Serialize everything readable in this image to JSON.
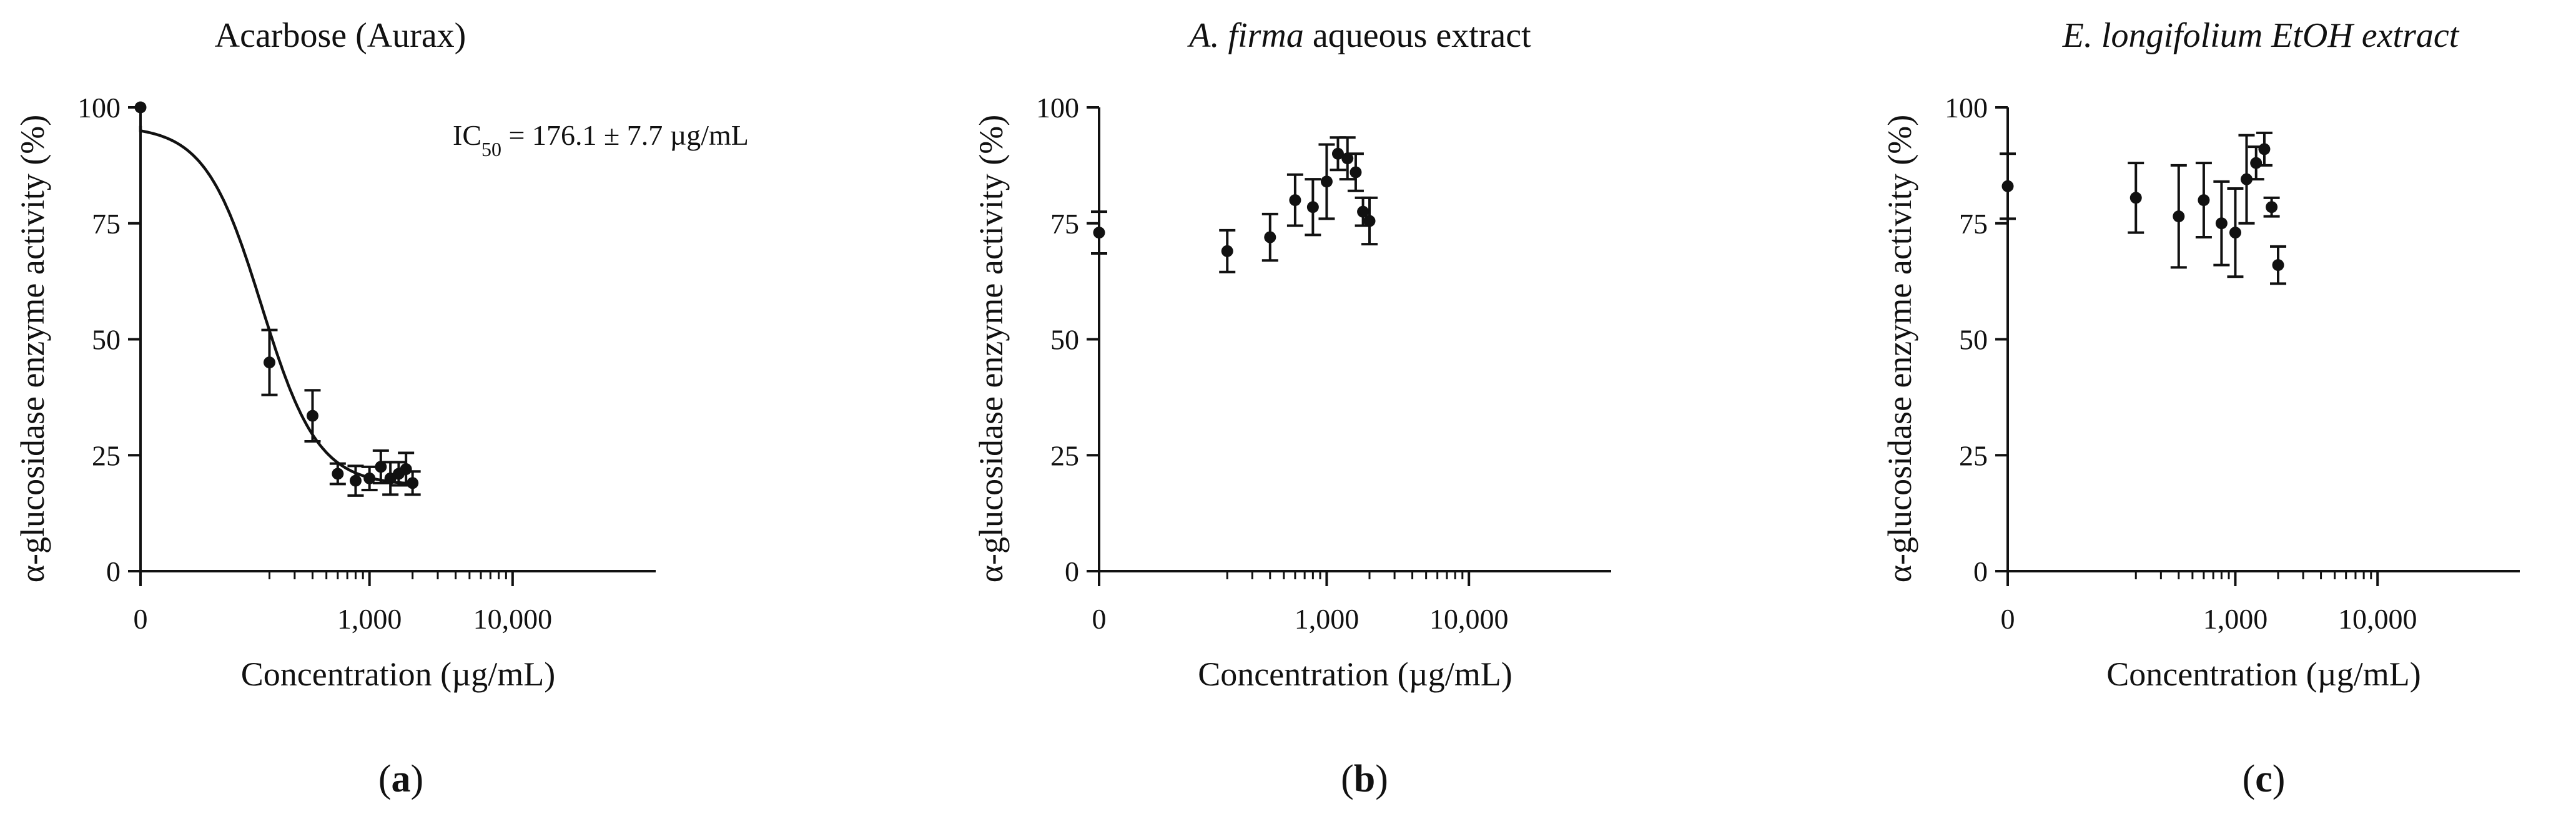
{
  "chart_data": [
    {
      "type": "scatter",
      "panel_label": "a",
      "title": "Acarbose (Aurax)",
      "title_parts": [
        {
          "text": "Acarbose (Aurax)",
          "italic": false
        }
      ],
      "xlabel": "Concentration (µg/mL)",
      "ylabel": "α-glucosidase enzyme activity (%)",
      "xscale": "log-with-zero",
      "x_ticks": [
        "0",
        "1,000",
        "10,000"
      ],
      "y_ticks": [
        "0",
        "25",
        "50",
        "75",
        "100"
      ],
      "ylim": [
        0,
        100
      ],
      "annotation_parts": [
        {
          "text": "IC",
          "style": "normal"
        },
        {
          "text": "50",
          "style": "sub"
        },
        {
          "text": " = 176.1 ± 7.7 µg/mL",
          "style": "normal"
        }
      ],
      "fit_curve": {
        "top": 96,
        "bottom": 18.5,
        "ic50": 176.1,
        "hill": 2.2
      },
      "points": [
        {
          "x": 0,
          "y": 100,
          "err": 0
        },
        {
          "x": 200,
          "y": 45,
          "err": 7
        },
        {
          "x": 400,
          "y": 33.5,
          "err": 5.5
        },
        {
          "x": 600,
          "y": 21,
          "err": 2.2
        },
        {
          "x": 800,
          "y": 19.5,
          "err": 3.2
        },
        {
          "x": 1000,
          "y": 20,
          "err": 2.5
        },
        {
          "x": 1200,
          "y": 22.5,
          "err": 3.5
        },
        {
          "x": 1400,
          "y": 20,
          "err": 3.5
        },
        {
          "x": 1600,
          "y": 21,
          "err": 2.5
        },
        {
          "x": 1800,
          "y": 22,
          "err": 3.5
        },
        {
          "x": 2000,
          "y": 19,
          "err": 2.5
        }
      ]
    },
    {
      "type": "scatter",
      "panel_label": "b",
      "title": "A. firma aqueous extract",
      "title_parts": [
        {
          "text": "A. firma",
          "italic": true
        },
        {
          "text": " aqueous extract",
          "italic": false
        }
      ],
      "xlabel": "Concentration (µg/mL)",
      "ylabel": "α-glucosidase enzyme activity (%)",
      "xscale": "log-with-zero",
      "x_ticks": [
        "0",
        "1,000",
        "10,000"
      ],
      "y_ticks": [
        "0",
        "25",
        "50",
        "75",
        "100"
      ],
      "ylim": [
        0,
        100
      ],
      "points": [
        {
          "x": 0,
          "y": 73,
          "err": 4.5
        },
        {
          "x": 200,
          "y": 69,
          "err": 4.5
        },
        {
          "x": 400,
          "y": 72,
          "err": 5
        },
        {
          "x": 600,
          "y": 80,
          "err": 5.5
        },
        {
          "x": 800,
          "y": 78.5,
          "err": 6
        },
        {
          "x": 1000,
          "y": 84,
          "err": 8
        },
        {
          "x": 1200,
          "y": 90,
          "err": 3.5
        },
        {
          "x": 1400,
          "y": 89,
          "err": 4.5
        },
        {
          "x": 1600,
          "y": 86,
          "err": 4
        },
        {
          "x": 1800,
          "y": 77.5,
          "err": 3
        },
        {
          "x": 2000,
          "y": 75.5,
          "err": 5
        }
      ]
    },
    {
      "type": "scatter",
      "panel_label": "c",
      "title": "E. longifolium EtOH extract",
      "title_parts": [
        {
          "text": "E. longifolium EtOH extract",
          "italic": true
        }
      ],
      "xlabel": "Concentration (µg/mL)",
      "ylabel": "α-glucosidase enzyme activity (%)",
      "xscale": "log-with-zero",
      "x_ticks": [
        "0",
        "1,000",
        "10,000"
      ],
      "y_ticks": [
        "0",
        "25",
        "50",
        "75",
        "100"
      ],
      "ylim": [
        0,
        100
      ],
      "points": [
        {
          "x": 0,
          "y": 83,
          "err": 7
        },
        {
          "x": 200,
          "y": 80.5,
          "err": 7.5
        },
        {
          "x": 400,
          "y": 76.5,
          "err": 11
        },
        {
          "x": 600,
          "y": 80,
          "err": 8
        },
        {
          "x": 800,
          "y": 75,
          "err": 9
        },
        {
          "x": 1000,
          "y": 73,
          "err": 9.5
        },
        {
          "x": 1200,
          "y": 84.5,
          "err": 9.5
        },
        {
          "x": 1400,
          "y": 88,
          "err": 3.5
        },
        {
          "x": 1600,
          "y": 91,
          "err": 3.5
        },
        {
          "x": 1800,
          "y": 78.5,
          "err": 2
        },
        {
          "x": 2000,
          "y": 66,
          "err": 4
        }
      ]
    }
  ]
}
